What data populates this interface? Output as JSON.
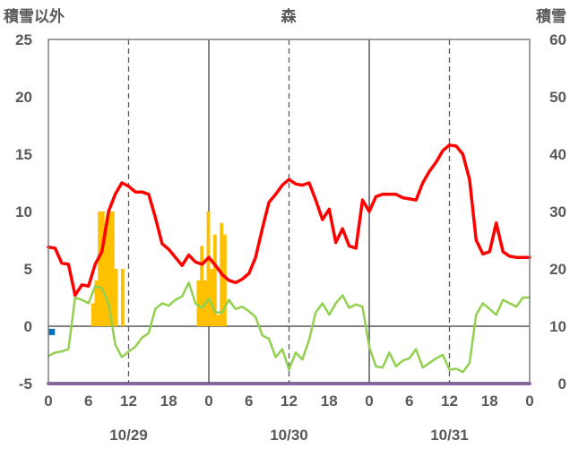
{
  "chart_data": {
    "type": "bar+line",
    "title": "森",
    "y_left_label": "積雪以外",
    "y_right_label": "積雪",
    "y_left_ticks": [
      "25",
      "20",
      "15",
      "10",
      "5",
      "0",
      "-5"
    ],
    "y_right_ticks": [
      "60",
      "50",
      "40",
      "30",
      "20",
      "10",
      "0"
    ],
    "ylim_left": [
      -5,
      25
    ],
    "ylim_right": [
      0,
      60
    ],
    "x_hours": 72,
    "x_tick_labels": [
      "0",
      "6",
      "12",
      "18",
      "0",
      "6",
      "12",
      "18",
      "0",
      "6",
      "12",
      "18",
      "0"
    ],
    "date_labels": [
      "10/29",
      "10/30",
      "10/31"
    ],
    "grid": "vertical lines at 0h and 12h of each day",
    "colors": {
      "temperature": "#ff0000",
      "dewpoint": "#92d050",
      "precip": "#ffc000",
      "snow": "#7030a0",
      "marker": "#0070c0",
      "axis_text": "#595959"
    },
    "series": [
      {
        "axis": "left",
        "kind": "bar",
        "values": [
          0,
          0,
          0,
          0,
          0,
          0,
          0,
          0,
          0,
          0,
          0,
          0,
          0,
          2,
          4,
          10,
          10,
          9,
          10,
          10,
          5,
          0,
          5,
          0,
          0,
          0,
          0,
          0,
          0,
          0,
          0,
          0,
          0,
          0,
          0,
          0,
          0,
          0,
          0,
          0,
          0,
          0,
          0,
          0,
          0,
          4,
          7,
          4,
          10,
          5,
          8,
          1,
          9,
          8,
          0,
          0,
          0,
          0,
          0,
          0,
          0,
          0,
          0,
          0,
          0,
          0,
          0,
          0,
          0,
          0,
          0,
          0,
          0,
          0,
          0,
          0,
          0,
          0,
          0,
          0,
          0,
          0,
          0,
          0,
          0,
          0,
          0,
          0,
          0,
          0,
          0,
          0,
          0,
          0,
          0,
          0,
          0,
          0,
          0,
          0,
          0,
          0,
          0,
          0,
          0,
          0,
          0,
          0,
          0,
          0,
          0,
          0,
          0,
          0,
          0,
          0,
          0,
          0,
          0,
          0,
          0,
          0,
          0,
          0,
          0,
          0,
          0,
          0,
          0,
          0,
          0,
          0,
          0,
          0,
          0,
          0,
          0,
          0,
          0,
          0,
          0,
          0,
          0,
          0,
          0,
          0
        ]
      },
      {
        "axis": "left",
        "kind": "line",
        "x": [
          0,
          1,
          2,
          3,
          4,
          5,
          6,
          7,
          8,
          9,
          10,
          11,
          12,
          13,
          14,
          15,
          16,
          17,
          18,
          19,
          20,
          21,
          22,
          23,
          24,
          25,
          26,
          27,
          28,
          29,
          30,
          31,
          32,
          33,
          34,
          35,
          36,
          37,
          38,
          39,
          40,
          41,
          42,
          43,
          44,
          45,
          46,
          47,
          48,
          49,
          50,
          51,
          52,
          53,
          54,
          55,
          56,
          57,
          58,
          59,
          60,
          61,
          62,
          63,
          64,
          65,
          66,
          67,
          68,
          69,
          70,
          71,
          72
        ],
        "values": [
          6.9,
          6.8,
          5.5,
          5.4,
          2.7,
          3.6,
          3.5,
          5.4,
          6.5,
          10,
          11.5,
          12.5,
          12.2,
          11.7,
          11.7,
          11.5,
          9.5,
          7.2,
          6.7,
          6,
          5.3,
          6.2,
          5.6,
          5.4,
          6,
          5.3,
          4.5,
          4,
          3.8,
          4.1,
          4.6,
          6,
          8.5,
          10.8,
          11.5,
          12.3,
          12.8,
          12.4,
          12.3,
          12.5,
          11,
          9.3,
          10.2,
          7.3,
          8.5,
          7,
          6.8,
          11,
          10,
          11.3,
          11.5,
          11.5,
          11.5,
          11.2,
          11.1,
          11,
          12.5,
          13.5,
          14.3,
          15.3,
          15.8,
          15.7,
          15,
          12.8,
          7.5,
          6.3,
          6.5,
          9,
          6.5,
          6.1,
          6,
          6,
          6
        ]
      },
      {
        "axis": "left",
        "kind": "line",
        "x": [
          0,
          1,
          2,
          3,
          4,
          5,
          6,
          7,
          8,
          9,
          10,
          11,
          12,
          13,
          14,
          15,
          16,
          17,
          18,
          19,
          20,
          21,
          22,
          23,
          24,
          25,
          26,
          27,
          28,
          29,
          30,
          31,
          32,
          33,
          34,
          35,
          36,
          37,
          38,
          39,
          40,
          41,
          42,
          43,
          44,
          45,
          46,
          47,
          48,
          49,
          50,
          51,
          52,
          53,
          54,
          55,
          56,
          57,
          58,
          59,
          60,
          61,
          62,
          63,
          64,
          65,
          66,
          67,
          68,
          69,
          70,
          71,
          72
        ],
        "values": [
          -2.6,
          -2.3,
          -2.2,
          -2,
          2.5,
          2.3,
          2,
          3.5,
          3.3,
          2,
          -1.6,
          -2.7,
          -2.2,
          -1.8,
          -1,
          -0.6,
          1.5,
          2,
          1.8,
          2.3,
          2.6,
          3.8,
          2,
          1.6,
          2.4,
          1.2,
          1.2,
          2.3,
          1.5,
          1.7,
          1.3,
          0.8,
          -0.8,
          -1.1,
          -2.7,
          -2,
          -3.8,
          -2.3,
          -2.9,
          -1.2,
          1.2,
          2,
          1,
          2,
          2.7,
          1.6,
          1.9,
          1.7,
          -1.8,
          -3.5,
          -3.6,
          -2.3,
          -3.5,
          -3,
          -2.8,
          -2,
          -3.6,
          -3.2,
          -2.8,
          -2.5,
          -3.8,
          -3.7,
          -4,
          -3.2,
          1,
          2,
          1.5,
          1,
          2.3,
          2,
          1.7,
          2.5,
          2.5
        ]
      },
      {
        "axis": "right",
        "kind": "line",
        "x": [
          0,
          72
        ],
        "values": [
          0,
          0
        ]
      },
      {
        "axis": "right",
        "kind": "point",
        "x": [
          0.5
        ],
        "values": [
          9
        ]
      }
    ]
  }
}
